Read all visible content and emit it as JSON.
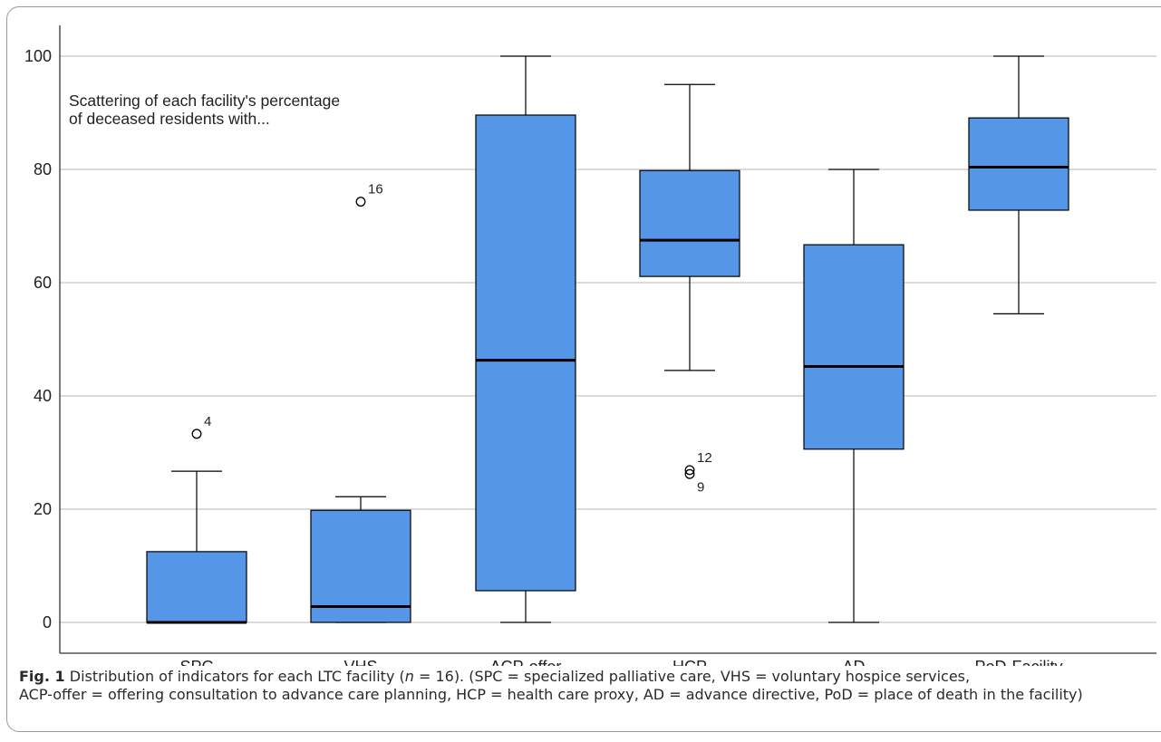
{
  "chart_data": {
    "type": "box",
    "categories": [
      "SPC",
      "VHS",
      "ACP-offer",
      "HCP",
      "AD",
      "PoD-Facility"
    ],
    "boxes": [
      {
        "category": "SPC",
        "min": 0,
        "q1": 0,
        "median": 0,
        "q3": 12.5,
        "max": 26.7,
        "outliers": [
          {
            "value": 33.3,
            "label": "4"
          }
        ]
      },
      {
        "category": "VHS",
        "min": 0,
        "q1": 0,
        "median": 2.8,
        "q3": 19.8,
        "max": 22.2,
        "outliers": [
          {
            "value": 74.3,
            "label": "16"
          }
        ]
      },
      {
        "category": "ACP-offer",
        "min": 0,
        "q1": 5.6,
        "median": 46.3,
        "q3": 89.6,
        "max": 100,
        "outliers": []
      },
      {
        "category": "HCP",
        "min": 44.5,
        "q1": 61.1,
        "median": 67.5,
        "q3": 79.8,
        "max": 95.0,
        "outliers": [
          {
            "value": 26.9,
            "label": "12"
          },
          {
            "value": 26.2,
            "label": "9"
          }
        ]
      },
      {
        "category": "AD",
        "min": 0,
        "q1": 30.6,
        "median": 45.2,
        "q3": 66.7,
        "max": 80.0,
        "outliers": []
      },
      {
        "category": "PoD-Facility",
        "min": 54.5,
        "q1": 72.8,
        "median": 80.4,
        "q3": 89.1,
        "max": 100,
        "outliers": []
      }
    ],
    "yticks": [
      0,
      20,
      40,
      60,
      80,
      100
    ],
    "ylim": [
      -5.5,
      107
    ],
    "grid": true,
    "box_color": "#5596e6",
    "annotation": [
      "Scattering of each facility's percentage",
      "of deceased residents with..."
    ]
  },
  "caption": {
    "fig_label": "Fig. 1",
    "line1_before": "  Distribution of indicators for each LTC facility (",
    "line1_n": "n",
    "line1_after": " = 16). (SPC = specialized palliative care, VHS = voluntary hospice services,",
    "line2": "ACP-offer = offering consultation to advance care planning, HCP = health care proxy, AD = advance directive, PoD = place of death in the facility)"
  }
}
